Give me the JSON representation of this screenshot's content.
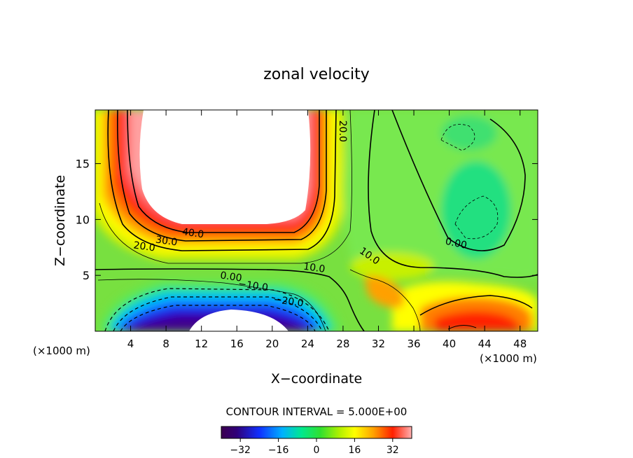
{
  "chart_data": {
    "type": "heatmap",
    "subtype": "filled-contour",
    "title": "zonal velocity",
    "xlabel": "X−coordinate",
    "ylabel": "Z−coordinate",
    "x_unit_left": "(×1000 m)",
    "x_unit_right": "(×1000 m)",
    "xlim": [
      0,
      50
    ],
    "ylim": [
      0,
      19.8
    ],
    "x_ticks": [
      4,
      8,
      12,
      16,
      20,
      24,
      28,
      32,
      36,
      40,
      44,
      48
    ],
    "y_ticks": [
      5,
      10,
      15
    ],
    "grid": false,
    "contour_interval_text": "CONTOUR INTERVAL = 5.000E+00",
    "contour_interval": 5.0,
    "contour_labels": [
      {
        "text": "40.0",
        "x": 11,
        "z": 8.5
      },
      {
        "text": "30.0",
        "x": 8,
        "z": 7.8
      },
      {
        "text": "20.0",
        "x": 5.5,
        "z": 7.3
      },
      {
        "text": "20.0",
        "x": 27.6,
        "z": 17.9
      },
      {
        "text": "10.0",
        "x": 24.7,
        "z": 5.4
      },
      {
        "text": "0.00",
        "x": 15.3,
        "z": 4.6
      },
      {
        "text": "−10.0",
        "x": 17.8,
        "z": 3.8
      },
      {
        "text": "−20.0",
        "x": 21.8,
        "z": 2.4
      },
      {
        "text": "10.0",
        "x": 30.8,
        "z": 6.5
      },
      {
        "text": "0.00",
        "x": 40.7,
        "z": 7.6
      }
    ],
    "colorbar": {
      "range": [
        -40,
        40
      ],
      "ticks": [
        -32,
        -16,
        0,
        16,
        32
      ],
      "tick_labels": [
        "−32",
        "−16",
        "0",
        "16",
        "32"
      ]
    },
    "features": [
      {
        "name": "strong positive jet (> 45, white core)",
        "x": [
          5,
          24
        ],
        "z": [
          8.5,
          19.8
        ]
      },
      {
        "name": "strong negative jet (< -40, white core)",
        "x": [
          8,
          22
        ],
        "z": [
          0,
          2.0
        ]
      },
      {
        "name": "near-zero region",
        "x": [
          28,
          50
        ],
        "z": [
          5,
          19.8
        ]
      },
      {
        "name": "positive pocket",
        "x": [
          38,
          48
        ],
        "z": [
          0,
          3
        ]
      }
    ]
  }
}
